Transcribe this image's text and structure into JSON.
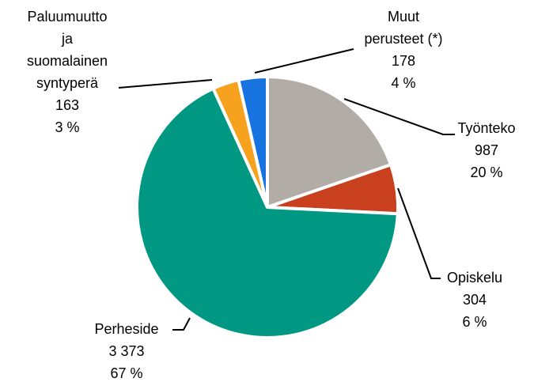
{
  "chart_data": {
    "type": "pie",
    "categories": [
      [
        "Työnteko"
      ],
      [
        "Opiskelu"
      ],
      [
        "Perheside"
      ],
      [
        "Paluumuutto",
        "ja",
        "suomalainen",
        "syntyperä"
      ],
      [
        "Muut",
        "perusteet (*)"
      ]
    ],
    "values": [
      987,
      304,
      3373,
      163,
      178
    ],
    "value_labels": [
      "987",
      "304",
      "3 373",
      "163",
      "178"
    ],
    "share_labels": [
      "20 %",
      "6 %",
      "67 %",
      "3 %",
      "4 %"
    ],
    "colors": [
      "#b1ada6",
      "#c9401f",
      "#009882",
      "#f6a21e",
      "#1673e0"
    ]
  }
}
